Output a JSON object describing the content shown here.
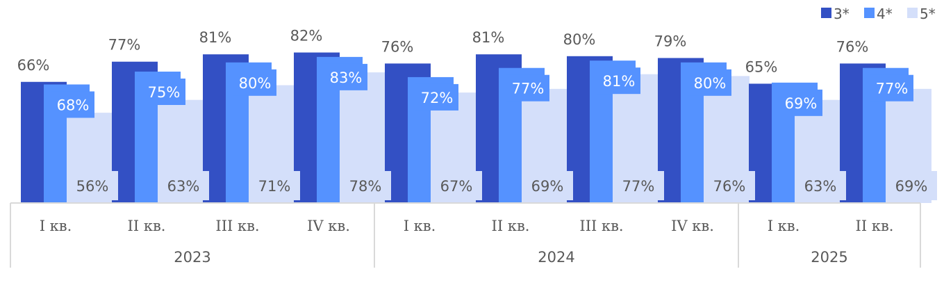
{
  "chart_data": {
    "type": "bar",
    "categories": [
      "I кв.",
      "II кв.",
      "III кв.",
      "IV кв.",
      "I кв.",
      "II кв.",
      "III кв.",
      "IV кв.",
      "I кв.",
      "II кв."
    ],
    "groups": [
      {
        "label": "2023",
        "count": 4
      },
      {
        "label": "2024",
        "count": 4
      },
      {
        "label": "2025",
        "count": 2
      }
    ],
    "series": [
      {
        "name": "3*",
        "color": "#3350c4",
        "values": [
          66,
          77,
          81,
          82,
          76,
          81,
          80,
          79,
          65,
          76
        ]
      },
      {
        "name": "4*",
        "color": "#5592ff",
        "values": [
          68,
          75,
          80,
          83,
          72,
          77,
          81,
          80,
          69,
          77
        ]
      },
      {
        "name": "5*",
        "color": "#d4dffa",
        "values": [
          56,
          63,
          71,
          78,
          67,
          69,
          77,
          76,
          63,
          69
        ]
      }
    ],
    "value_suffix": "%",
    "ylim": [
      0,
      100
    ],
    "legend_position": "top-right",
    "grid": false
  }
}
